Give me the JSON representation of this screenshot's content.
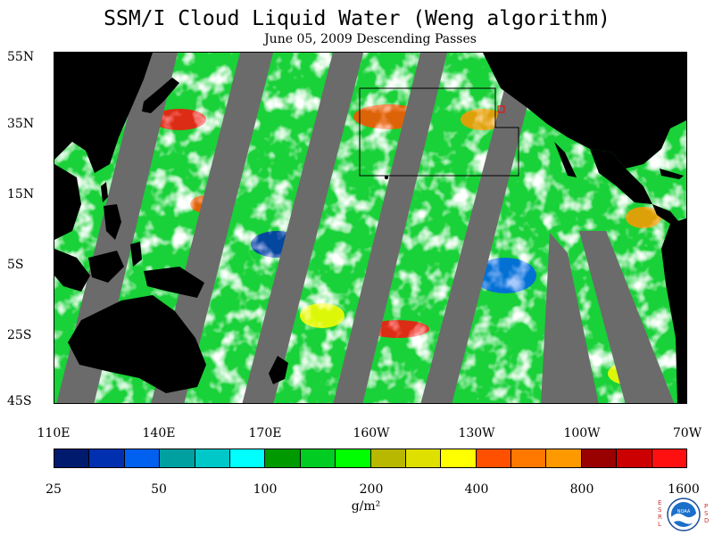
{
  "title": "SSM/I Cloud Liquid Water (Weng algorithm)",
  "subtitle": "June 05, 2009  Descending Passes",
  "map": {
    "y_labels": [
      "55N",
      "35N",
      "15N",
      "5S",
      "25S",
      "45S"
    ],
    "x_labels": [
      "110E",
      "140E",
      "170E",
      "160W",
      "130W",
      "100W",
      "70W"
    ],
    "colors": {
      "ocean_clear": "#ffffff",
      "no_data_swath": "#6b6b6b",
      "land": "#000000",
      "box_outline": "#000000",
      "small_box": "#ff0000"
    }
  },
  "colorbar": {
    "colors": [
      "#001a6e",
      "#0030b0",
      "#0060f0",
      "#00a0a0",
      "#00c8c8",
      "#00ffff",
      "#009900",
      "#00cc22",
      "#00ff00",
      "#b8b800",
      "#e0e000",
      "#ffff00",
      "#ff5000",
      "#ff7800",
      "#ff9900",
      "#990000",
      "#cc0000",
      "#ff1010"
    ],
    "labels": [
      "25",
      "50",
      "100",
      "200",
      "400",
      "800",
      "1600"
    ],
    "units": "g/m²"
  },
  "logo": {
    "left_letters": "ESRL",
    "right_letters": "PSD",
    "center_text": "NOAA"
  }
}
